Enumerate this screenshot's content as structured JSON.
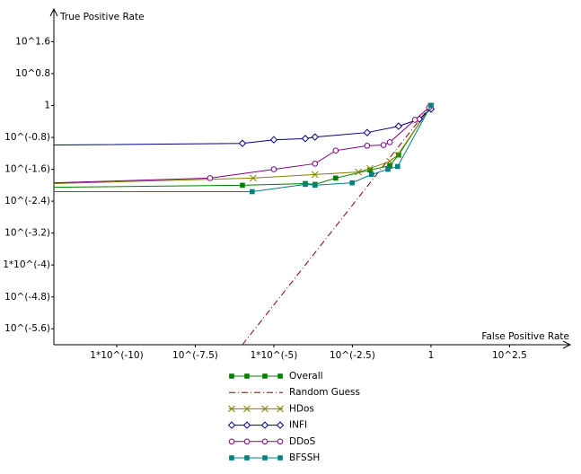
{
  "chart_data": {
    "type": "line",
    "x_label": "False Positive Rate",
    "y_label": "True Positive Rate",
    "x_log_scale": true,
    "y_log_scale": true,
    "legend": "bottom",
    "xlim": [
      1e-12,
      27000
    ],
    "ylim": [
      1e-06,
      263
    ],
    "xticks": [
      {
        "value": 1e-10,
        "label": "1*10^(-10)"
      },
      {
        "value": 3.16e-08,
        "label": "10^(-7.5)"
      },
      {
        "value": 1e-05,
        "label": "1*10^(-5)"
      },
      {
        "value": 0.00316,
        "label": "10^(-2.5)"
      },
      1,
      {
        "value": 316,
        "label": "10^2.5"
      }
    ],
    "yticks": [
      {
        "value": 39.8,
        "label": "10^1.6"
      },
      {
        "value": 6.31,
        "label": "10^0.8"
      },
      1,
      {
        "value": 0.158,
        "label": "10^(-0.8)"
      },
      {
        "value": 0.0251,
        "label": "10^(-1.6)"
      },
      {
        "value": 0.00398,
        "label": "10^(-2.4)"
      },
      {
        "value": 0.000631,
        "label": "10^(-3.2)"
      },
      {
        "value": 0.0001,
        "label": "1*10^(-4)"
      },
      {
        "value": 1.58e-05,
        "label": "10^(-4.8)"
      },
      {
        "value": 2.51e-06,
        "label": "10^(-5.6)"
      }
    ],
    "series": [
      {
        "name": "Overall",
        "color": "#008000",
        "marker": "square",
        "x": [
          1e-12,
          1e-06,
          0.0001,
          0.000204,
          0.00093,
          0.0115,
          0.049,
          0.093,
          1
        ],
        "values": [
          0.0089,
          0.01,
          0.011,
          0.0105,
          0.0151,
          0.024,
          0.031,
          0.0575,
          1
        ]
      },
      {
        "name": "Random Guess",
        "color": "#800000",
        "dash": "dashdot",
        "x": [
          1e-06,
          1
        ],
        "values": [
          1e-06,
          1
        ]
      },
      {
        "name": "HDos",
        "color": "#808000",
        "marker": "cross",
        "x": [
          1e-12,
          2.19e-06,
          0.000204,
          0.0049,
          0.0115,
          0.049,
          0.087,
          1
        ],
        "values": [
          0.011,
          0.0151,
          0.0186,
          0.0214,
          0.0263,
          0.0398,
          0.0575,
          0.955
        ]
      },
      {
        "name": "INFI",
        "color": "#000080",
        "marker": "diamond",
        "x": [
          1e-12,
          1e-06,
          1e-05,
          0.0001,
          0.000204,
          0.0093,
          0.093,
          0.427,
          1
        ],
        "values": [
          0.102,
          0.112,
          0.138,
          0.148,
          0.162,
          0.209,
          0.302,
          0.457,
          0.813
        ]
      },
      {
        "name": "DDoS",
        "color": "#800080",
        "marker": "circle",
        "x": [
          1e-12,
          9.3e-08,
          1e-05,
          0.000204,
          0.00093,
          0.0093,
          0.031,
          0.049,
          0.309,
          0.871
        ],
        "values": [
          0.0115,
          0.0151,
          0.0251,
          0.0347,
          0.0741,
          0.0977,
          0.102,
          0.12,
          0.437,
          0.891
        ]
      },
      {
        "name": "BFSSH",
        "color": "#008080",
        "marker": "square",
        "x": [
          1e-12,
          2.04e-06,
          0.0001,
          0.000204,
          0.0031,
          0.0129,
          0.0427,
          0.087,
          1
        ],
        "values": [
          0.0069,
          0.0069,
          0.0105,
          0.01,
          0.0115,
          0.0186,
          0.0251,
          0.0295,
          1
        ]
      }
    ]
  }
}
